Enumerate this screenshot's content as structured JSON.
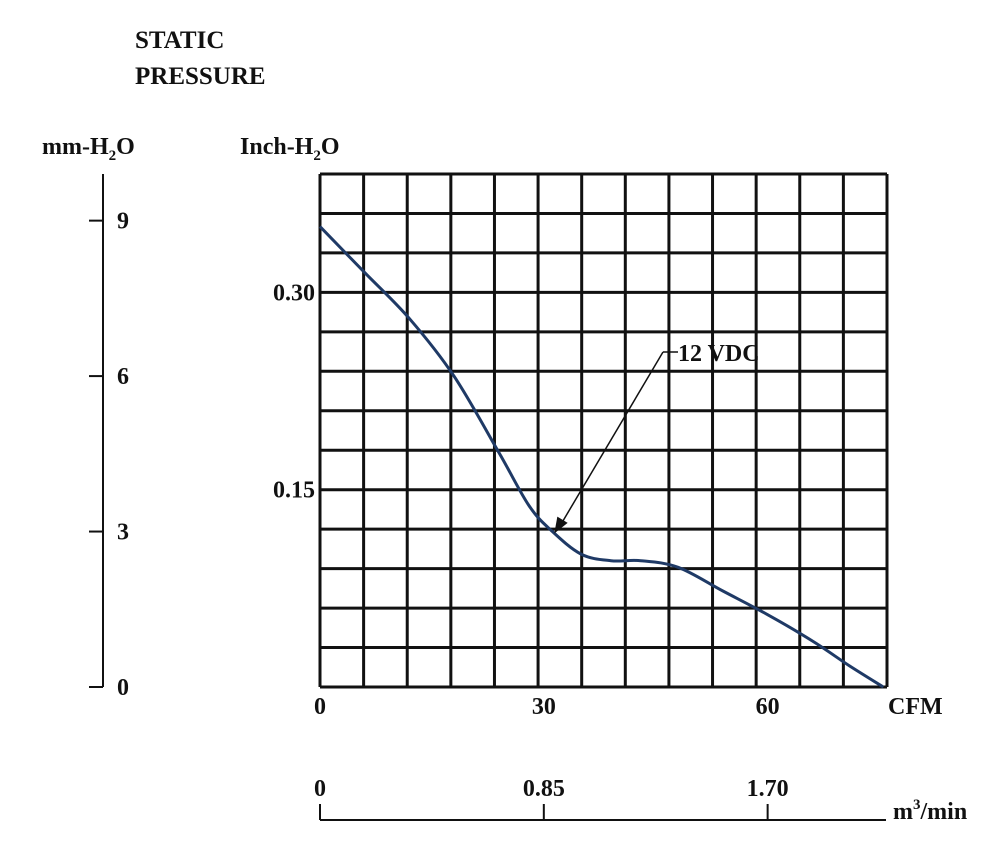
{
  "heading": {
    "line1": "STATIC",
    "line2": "PRESSURE"
  },
  "colors": {
    "ink": "#111111",
    "curve": "#1f3a66",
    "background": "#ffffff"
  },
  "chart_data": {
    "type": "line",
    "title": "",
    "xlabel": "CFM",
    "ylabel": "Inch-H2O",
    "xlim": [
      0,
      76
    ],
    "ylim": [
      0,
      0.39
    ],
    "grid": true,
    "x_ticks": [
      "0",
      "30",
      "60"
    ],
    "x_tick_values": [
      0,
      30,
      60
    ],
    "y_ticks": [
      "0.15",
      "0.30"
    ],
    "y_tick_values": [
      0.15,
      0.3
    ],
    "secondary_y_axis": {
      "label_main": "mm-H",
      "label_sub": "2",
      "label_tail": "O",
      "ticks": [
        "0",
        "3",
        "6",
        "9"
      ],
      "tick_values": [
        0,
        3,
        6,
        9
      ],
      "lim": [
        0,
        9.9
      ]
    },
    "ylabel_parts": {
      "main": "Inch-H",
      "sub": "2",
      "tail": "O"
    },
    "secondary_x_axis": {
      "label_main": "m",
      "label_sup": "3",
      "label_tail": "/min",
      "ticks": [
        "0",
        "0.85",
        "1.70"
      ],
      "tick_values": [
        0,
        30,
        60
      ]
    },
    "series": [
      {
        "name": "12 VDC",
        "x": [
          0,
          6,
          12,
          18,
          24,
          28,
          31,
          35,
          39,
          43,
          48,
          54,
          60,
          66,
          71,
          75.5
        ],
        "y": [
          0.35,
          0.315,
          0.28,
          0.236,
          0.178,
          0.138,
          0.119,
          0.101,
          0.096,
          0.096,
          0.091,
          0.073,
          0.055,
          0.035,
          0.016,
          0.0
        ]
      }
    ],
    "annotations": [
      {
        "text": "12 VDC",
        "target_x": 31,
        "target_y": 0.119
      }
    ]
  }
}
